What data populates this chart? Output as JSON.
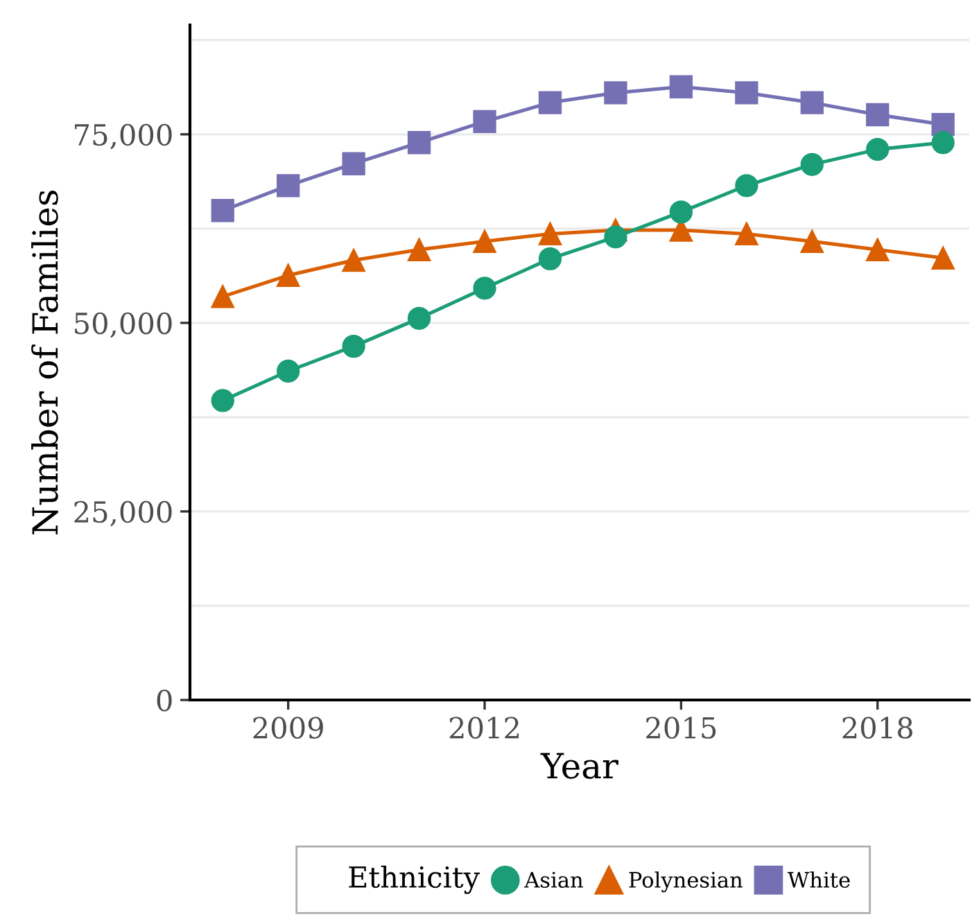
{
  "chart_data": {
    "type": "line",
    "xlabel": "Year",
    "ylabel": "Number of Families",
    "legend_title": "Ethnicity",
    "x": [
      2008,
      2009,
      2010,
      2011,
      2012,
      2013,
      2014,
      2015,
      2016,
      2017,
      2018,
      2019
    ],
    "series": [
      {
        "name": "Asian",
        "color": "#1b9e77",
        "marker": "circle",
        "values": [
          39700,
          43600,
          46900,
          50600,
          54600,
          58500,
          61400,
          64700,
          68200,
          71000,
          73000,
          73900
        ]
      },
      {
        "name": "Polynesian",
        "color": "#d95f02",
        "marker": "triangle",
        "values": [
          53500,
          56300,
          58300,
          59700,
          60800,
          61800,
          62300,
          62300,
          61800,
          60800,
          59700,
          58600
        ]
      },
      {
        "name": "White",
        "color": "#7570b3",
        "marker": "square",
        "values": [
          64900,
          68200,
          71100,
          73900,
          76700,
          79200,
          80500,
          81300,
          80500,
          79200,
          77600,
          76300
        ]
      }
    ],
    "xlim": [
      2007.5,
      2019.4
    ],
    "xticks": [
      2009,
      2012,
      2015,
      2018
    ],
    "ylim": [
      0,
      89500
    ],
    "yticks": [
      {
        "value": 0,
        "label": "0"
      },
      {
        "value": 25000,
        "label": "25,000"
      },
      {
        "value": 50000,
        "label": "50,000"
      },
      {
        "value": 75000,
        "label": "75,000"
      }
    ],
    "grid": "y",
    "legend": "bottom",
    "line_style": "solid"
  }
}
